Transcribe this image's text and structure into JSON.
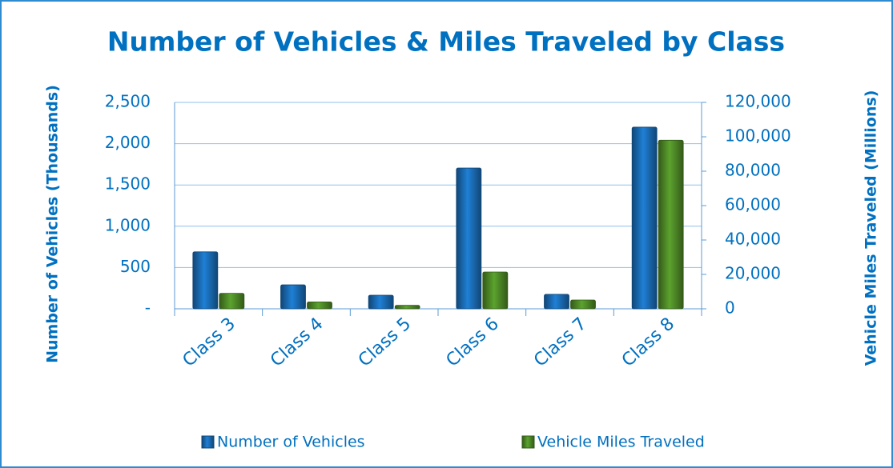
{
  "chart_data": {
    "type": "bar",
    "title": "Number of Vehicles & Miles Traveled by Class",
    "y_label": "Number of Vehicles (Thousands)",
    "y2_label": "Vehicle Miles Traveled (Millions)",
    "categories": [
      "Class 3",
      "Class 4",
      "Class 5",
      "Class 6",
      "Class 7",
      "Class 8"
    ],
    "series": [
      {
        "name": "Number of Vehicles",
        "color": "#1f80d6",
        "values": [
          690,
          290,
          165,
          1705,
          175,
          2200
        ]
      },
      {
        "name": "Vehicle Miles Traveled",
        "color": "#5ca32e",
        "axis": "y2",
        "values": [
          9000,
          4000,
          2000,
          21400,
          5100,
          98000
        ]
      }
    ],
    "ylim": [
      0,
      2500
    ],
    "yticks": [
      {
        "value": 0,
        "label": "-"
      },
      500,
      {
        "value": 1000,
        "label": "1,000"
      },
      {
        "value": 1500,
        "label": "1,500"
      },
      {
        "value": 2000,
        "label": "2,000"
      },
      {
        "value": 2500,
        "label": "2,500"
      }
    ],
    "y2lim": [
      0,
      120000
    ],
    "y2ticks": [
      0,
      {
        "value": 20000,
        "label": "20,000"
      },
      {
        "value": 40000,
        "label": "40,000"
      },
      {
        "value": 60000,
        "label": "60,000"
      },
      {
        "value": 80000,
        "label": "80,000"
      },
      {
        "value": 100000,
        "label": "100,000"
      },
      {
        "value": 120000,
        "label": "120,000"
      }
    ],
    "grid": true,
    "legend": "bottom"
  }
}
